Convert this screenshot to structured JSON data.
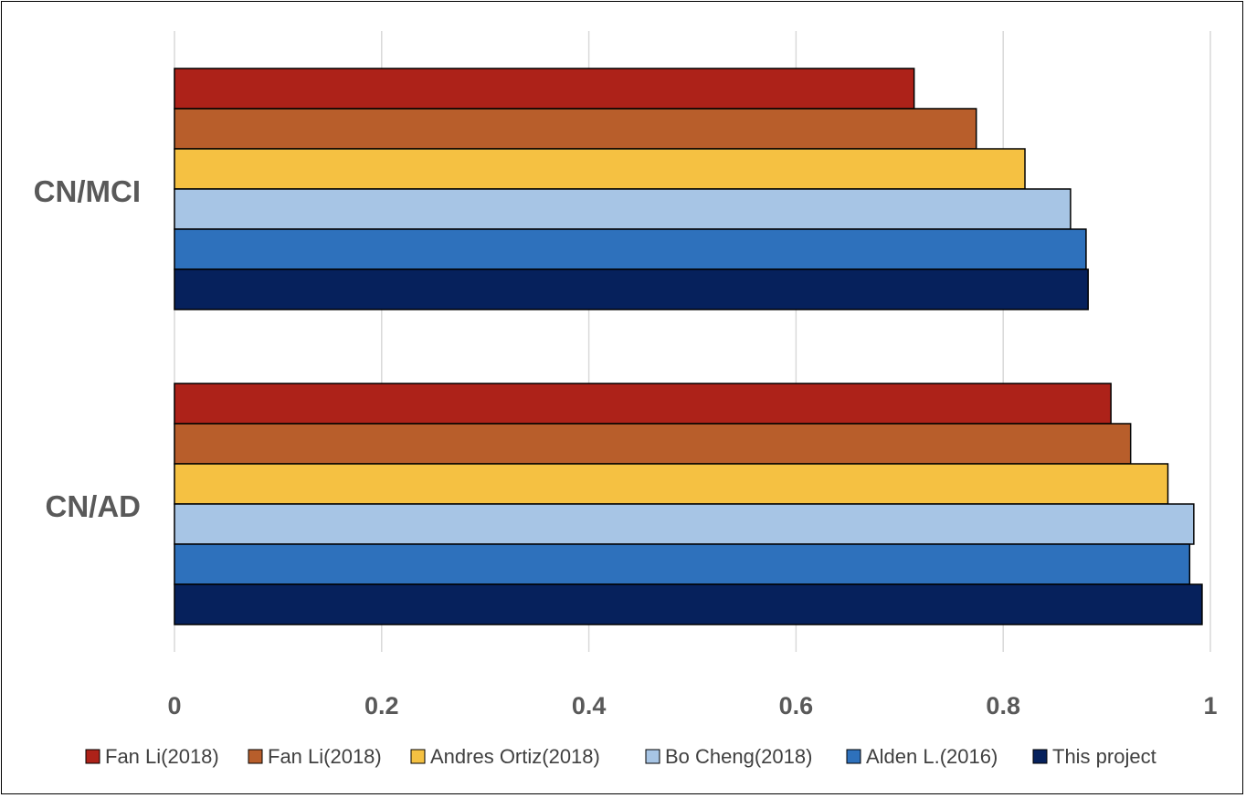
{
  "chart_data": {
    "type": "bar",
    "orientation": "horizontal",
    "categories": [
      "CN/MCI",
      "CN/AD"
    ],
    "series": [
      {
        "name": "Fan Li(2018)",
        "color": "#ad2219",
        "values": [
          0.714,
          0.904
        ]
      },
      {
        "name": "Fan Li(2018)",
        "color": "#b85e2b",
        "values": [
          0.774,
          0.923
        ]
      },
      {
        "name": "Andres Ortiz(2018)",
        "color": "#f5c142",
        "values": [
          0.821,
          0.959
        ]
      },
      {
        "name": "Bo Cheng(2018)",
        "color": "#a7c5e5",
        "values": [
          0.865,
          0.984
        ]
      },
      {
        "name": "Alden L.(2016)",
        "color": "#2e71bc",
        "values": [
          0.88,
          0.98
        ]
      },
      {
        "name": "This project",
        "color": "#06215c",
        "values": [
          0.882,
          0.992
        ]
      }
    ],
    "xlim": [
      0,
      1
    ],
    "xticks": [
      "0",
      "0.2",
      "0.4",
      "0.6",
      "0.8",
      "1"
    ],
    "grid": true,
    "legend": "bottom"
  }
}
